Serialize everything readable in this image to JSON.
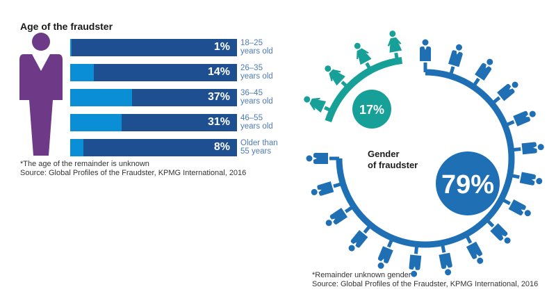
{
  "colors": {
    "bar_dark": "#1e4f91",
    "bar_light": "#0a8fd6",
    "person_purple": "#6e3a87",
    "male_blue": "#1f6fb5",
    "female_teal": "#17a097",
    "label_blue": "#4d7ab8"
  },
  "chart_data": [
    {
      "type": "bar",
      "orientation": "horizontal",
      "title": "Age of the fraudster",
      "categories": [
        "18–25 years old",
        "26–35 years old",
        "36–45 years old",
        "46–55 years old",
        "Older than 55 years"
      ],
      "values": [
        1,
        14,
        37,
        31,
        8
      ],
      "value_labels": [
        "1%",
        "14%",
        "37%",
        "31%",
        "8%"
      ],
      "xlim": [
        0,
        100
      ],
      "unit": "%",
      "footnote": "*The age of the remainder is unknown",
      "source": "Source: Global Profiles of the Fraudster, KPMG International, 2016"
    },
    {
      "type": "pie",
      "style": "ring-pictogram",
      "title": "Gender of fraudster",
      "categories": [
        "Female",
        "Male"
      ],
      "values": [
        17,
        79
      ],
      "value_labels": [
        "17%",
        "79%"
      ],
      "unit": "%",
      "footnote": "*Remainder unknown gender",
      "source": "Source: Global Profiles of the Fraudster, KPMG International, 2016"
    }
  ],
  "age": {
    "title": "Age of the fraudster",
    "rows": [
      {
        "value": 1,
        "label_value": "1%",
        "label_line1": "18–25",
        "label_line2": "years old"
      },
      {
        "value": 14,
        "label_value": "14%",
        "label_line1": "26–35",
        "label_line2": "years old"
      },
      {
        "value": 37,
        "label_value": "37%",
        "label_line1": "36–45",
        "label_line2": "years old"
      },
      {
        "value": 31,
        "label_value": "31%",
        "label_line1": "46–55",
        "label_line2": "years old"
      },
      {
        "value": 8,
        "label_value": "8%",
        "label_line1": "Older than",
        "label_line2": "55 years"
      }
    ],
    "footnote": "*The age of the remainder is unknown",
    "source": "Source: Global Profiles of the Fraudster, KPMG International, 2016"
  },
  "gender": {
    "title_line1": "Gender",
    "title_line2": "of fraudster",
    "female_label": "17%",
    "male_label": "79%",
    "female_value": 17,
    "male_value": 79,
    "female_icon_count": 4,
    "male_icon_count": 17,
    "footnote": "*Remainder unknown gender",
    "source": "Source: Global Profiles of the Fraudster, KPMG International, 2016"
  }
}
